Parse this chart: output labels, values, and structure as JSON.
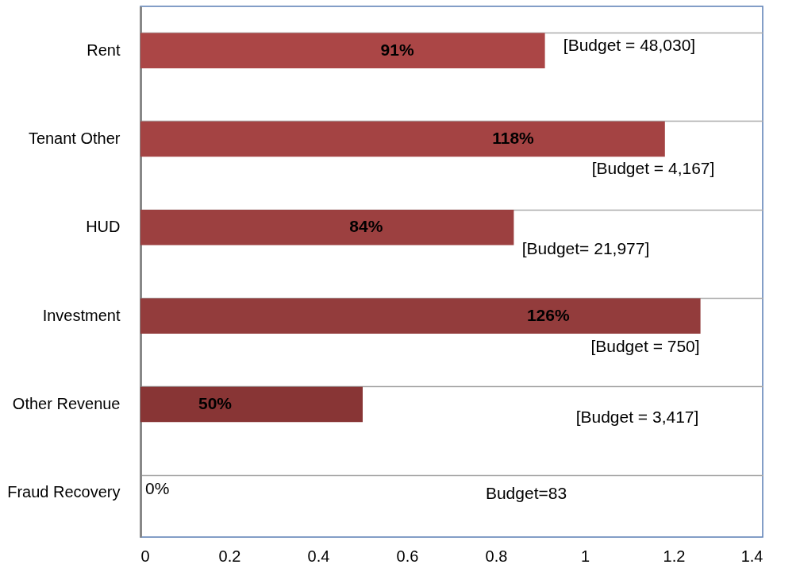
{
  "chart_data": {
    "type": "bar",
    "orientation": "horizontal",
    "categories": [
      "Rent",
      "Tenant Other",
      "HUD",
      "Investment",
      "Other Revenue",
      "Fraud Recovery"
    ],
    "values": [
      0.91,
      1.18,
      0.84,
      1.26,
      0.5,
      0
    ],
    "colors": [
      "#ab4646",
      "#a44343",
      "#9c4040",
      "#933c3c",
      "#883535",
      "#883535"
    ],
    "value_labels": [
      "91%",
      "118%",
      "84%",
      "126%",
      "50%",
      "0%"
    ],
    "xlim": [
      0,
      1.4
    ],
    "xticks": [
      0,
      0.2,
      0.4,
      0.6,
      0.8,
      1,
      1.2,
      1.4
    ],
    "grid": "y",
    "annotations": [
      "[Budget = 48,030]",
      "[Budget = 4,167]",
      "[Budget= 21,977]",
      "[Budget = 750]",
      "[Budget = 3,417]",
      "Budget=83"
    ]
  }
}
